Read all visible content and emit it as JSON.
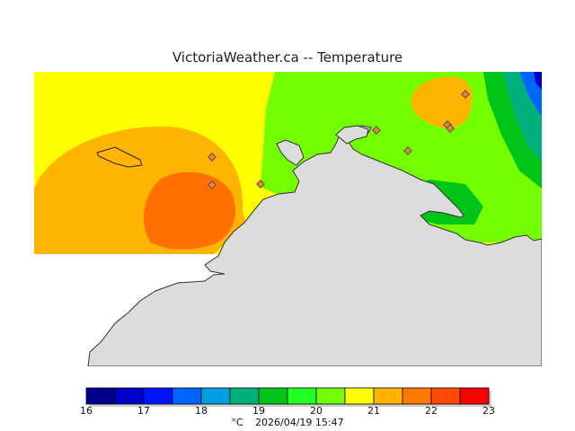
{
  "title": "VictoriaWeather.ca -- Temperature",
  "map": {
    "station_color": "#f08040",
    "land_color": "#dcdcdc",
    "field_colors": {
      "19_20": "#00dd00",
      "20_21": "#73ff00",
      "21_22": "#ffff00",
      "22_23": "#ffb400",
      "23_24": "#ff7000"
    }
  },
  "legend": {
    "colors": [
      "#00008c",
      "#0000cd",
      "#0014ff",
      "#0064ff",
      "#00a0e0",
      "#00b07c",
      "#00c418",
      "#22ff22",
      "#73ff00",
      "#ffff00",
      "#ffb400",
      "#ff7800",
      "#ff4a00",
      "#ff0000"
    ],
    "ticks": [
      "16",
      "17",
      "18",
      "19",
      "20",
      "21",
      "22",
      "23"
    ]
  },
  "footer": {
    "unit": "°C",
    "timestamp": "2026/04/19 15:47"
  }
}
